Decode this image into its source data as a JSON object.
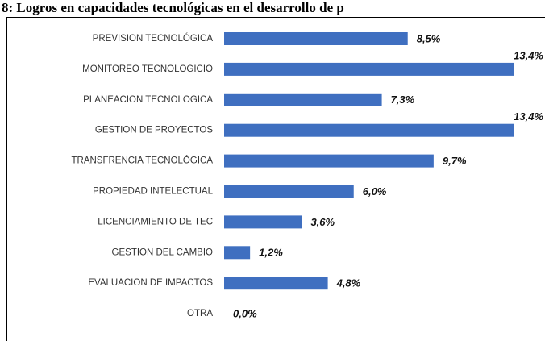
{
  "chart_data": {
    "type": "barh",
    "title": "8: Logros en capacidades tecnológicas en el desarrollo de p",
    "categories": [
      "PREVISION TECNOLÓGICA",
      "MONITOREO TECNOLOGICIO",
      "PLANEACION TECNOLOGICA",
      "GESTION DE PROYECTOS",
      "TRANSFRENCIA TECNOLÓGICA",
      "PROPIEDAD INTELECTUAL",
      "LICENCIAMIENTO DE TEC",
      "GESTION DEL CAMBIO",
      "EVALUACION DE IMPACTOS",
      "OTRA"
    ],
    "values": [
      8.5,
      13.4,
      7.3,
      13.4,
      9.7,
      6.0,
      3.6,
      1.2,
      4.8,
      0.0
    ],
    "value_labels": [
      "8,5%",
      "13,4%",
      "7,3%",
      "13,4%",
      "9,7%",
      "6,0%",
      "3,6%",
      "1,2%",
      "4,8%",
      "0,0%"
    ],
    "color": "#3f6fc0"
  }
}
